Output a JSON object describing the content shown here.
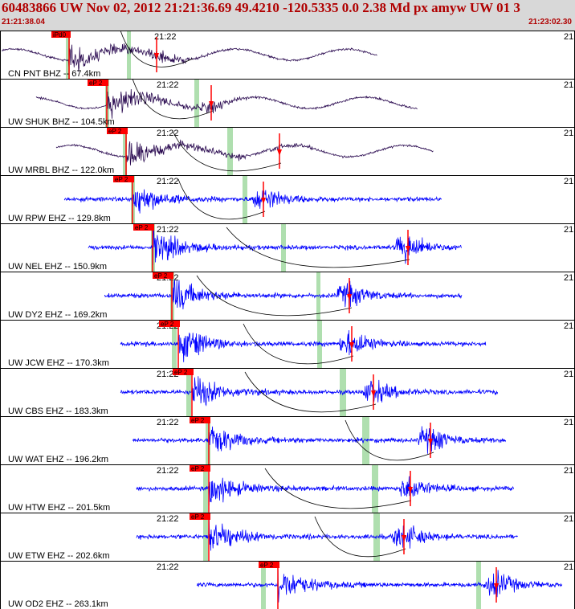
{
  "header": {
    "title": "60483866 UW Nov 02, 2012 21:21:36.69    49.4210 -120.5335  0.0 2.38 Md px amyw UW 01   3",
    "start_time": "21:21:38.04",
    "end_time": "21:23:02.30",
    "color": "#b00000",
    "background": "#d8d8d8"
  },
  "chart_data": {
    "type": "line",
    "title": "",
    "xlabel": "",
    "ylabel": "",
    "x_range": [
      "21:21:38.04",
      "21:23:02.30"
    ],
    "time_mark_label": "21:22",
    "edge_label": "21:",
    "colors": {
      "trace_bhz": "#2a0a50",
      "trace_ehz": "#0000ff",
      "pick": "#ff0000",
      "window": "#a6dca6",
      "curve": "#000000"
    },
    "traces": [
      {
        "label": "CN PNT BHZ -- 67.4km",
        "pick_label": "iPd0",
        "channel": "BHZ",
        "distance_km": 67.4
      },
      {
        "label": "UW SHUK BHZ -- 104.5km",
        "pick_label": "eP 2",
        "channel": "BHZ",
        "distance_km": 104.5
      },
      {
        "label": "UW MRBL BHZ -- 122.0km",
        "pick_label": "eP 2",
        "channel": "BHZ",
        "distance_km": 122.0
      },
      {
        "label": "UW RPW EHZ -- 129.8km",
        "pick_label": "eP 2",
        "channel": "EHZ",
        "distance_km": 129.8
      },
      {
        "label": "UW NEL EHZ -- 150.9km",
        "pick_label": "eP 2",
        "channel": "EHZ",
        "distance_km": 150.9
      },
      {
        "label": "UW DY2 EHZ -- 169.2km",
        "pick_label": "eP 2",
        "channel": "EHZ",
        "distance_km": 169.2
      },
      {
        "label": "UW JCW EHZ -- 170.3km",
        "pick_label": "eP 2",
        "channel": "EHZ",
        "distance_km": 170.3
      },
      {
        "label": "UW CBS EHZ -- 183.3km",
        "pick_label": "eP 2",
        "channel": "EHZ",
        "distance_km": 183.3
      },
      {
        "label": "UW WAT EHZ -- 196.2km",
        "pick_label": "eP 2",
        "channel": "EHZ",
        "distance_km": 196.2
      },
      {
        "label": "UW HTW EHZ -- 201.5km",
        "pick_label": "eP 2",
        "channel": "EHZ",
        "distance_km": 201.5
      },
      {
        "label": "UW ETW EHZ -- 202.6km",
        "pick_label": "eP 2",
        "channel": "EHZ",
        "distance_km": 202.6
      },
      {
        "label": "UW OD2 EHZ -- 263.1km",
        "pick_label": "eP 2",
        "channel": "EHZ",
        "distance_km": 263.1
      }
    ]
  }
}
